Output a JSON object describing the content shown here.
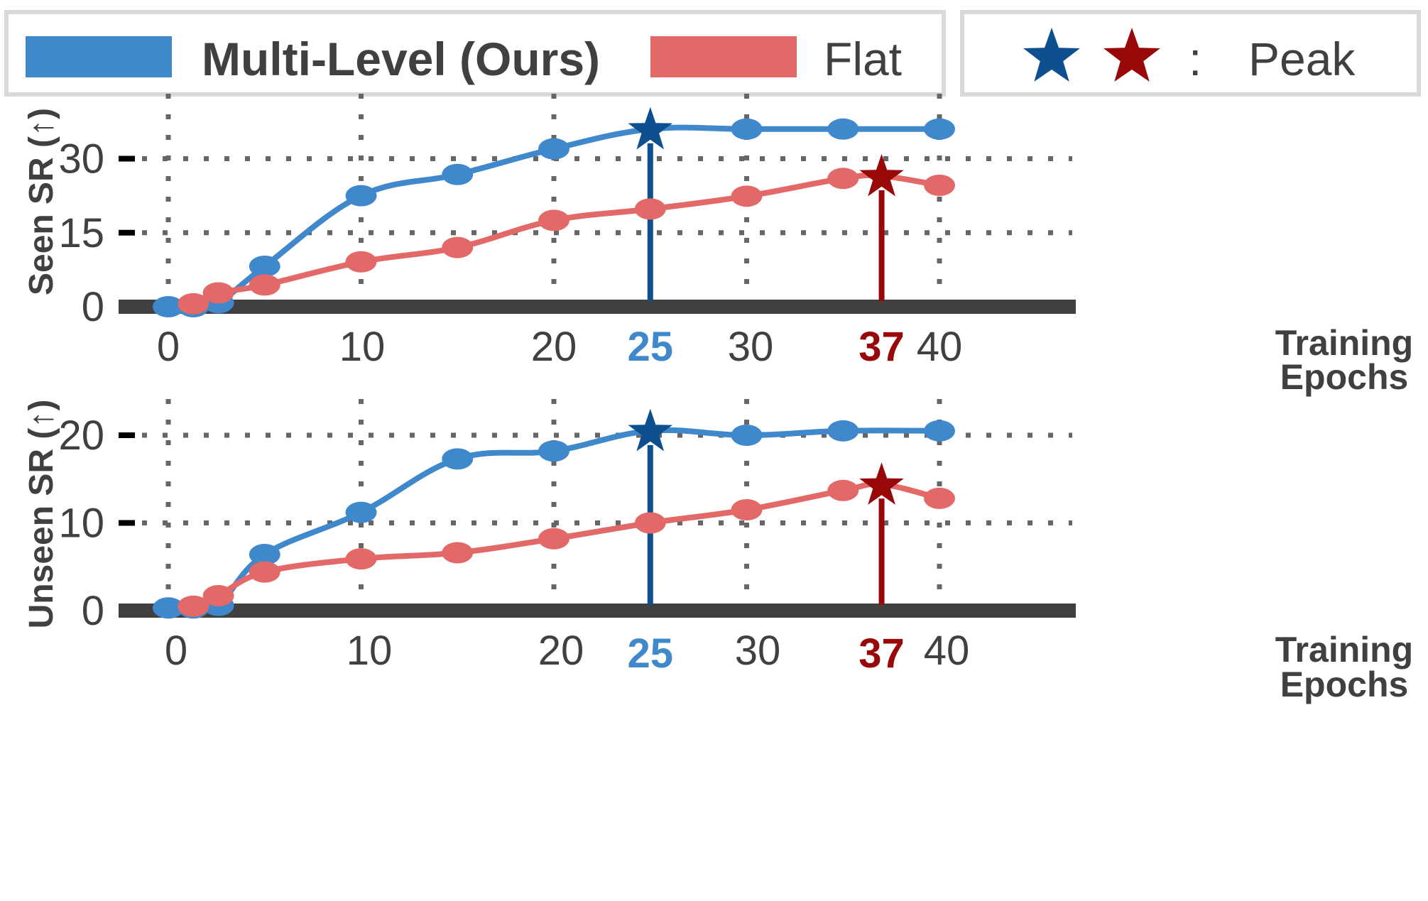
{
  "legend": {
    "multi_label": "Multi-Level (Ours)",
    "flat_label": "Flat",
    "peak_separator": ":",
    "peak_label": "Peak"
  },
  "colors": {
    "multi": "#4088cc",
    "flat": "#e36868",
    "multi_peak": "#0e4f8f",
    "flat_peak": "#980808",
    "axis": "#404040",
    "grid": "#666666"
  },
  "chart_data": [
    {
      "type": "line",
      "ylabel": "Seen SR (↑)",
      "xlabel": "Training Epochs",
      "x_ticks": [
        0,
        10,
        20,
        30,
        40
      ],
      "y_ticks": [
        0,
        15,
        30
      ],
      "ylim": [
        0,
        36
      ],
      "grid": true,
      "series": [
        {
          "name": "Multi-Level (Ours)",
          "x": [
            0,
            1.3,
            2.6,
            5,
            10,
            15,
            20,
            25,
            30,
            35,
            40
          ],
          "values": [
            0,
            0,
            0.8,
            8.2,
            22.5,
            26.8,
            32,
            36,
            36,
            36,
            36
          ]
        },
        {
          "name": "Flat",
          "x": [
            1.3,
            2.6,
            5,
            10,
            15,
            20,
            25,
            30,
            35,
            37,
            40
          ],
          "values": [
            0.6,
            2.8,
            4.4,
            9.1,
            12,
            17.5,
            19.8,
            22.4,
            26,
            26.5,
            24.6
          ]
        }
      ],
      "peaks": [
        {
          "series": "Multi-Level (Ours)",
          "epoch": 25,
          "label": "25"
        },
        {
          "series": "Flat",
          "epoch": 37,
          "label": "37"
        }
      ]
    },
    {
      "type": "line",
      "ylabel": "Unseen SR (↑)",
      "xlabel": "Training Epochs",
      "x_ticks": [
        0,
        10,
        20,
        30,
        40
      ],
      "y_ticks": [
        0,
        10,
        20
      ],
      "ylim": [
        0,
        20.5
      ],
      "grid": true,
      "series": [
        {
          "name": "Multi-Level (Ours)",
          "x": [
            0,
            1.3,
            2.6,
            5,
            10,
            15,
            20,
            25,
            30,
            35,
            40
          ],
          "values": [
            0.3,
            0.3,
            0.6,
            6.4,
            11.2,
            17.3,
            18.2,
            20.5,
            20,
            20.5,
            20.5
          ]
        },
        {
          "name": "Flat",
          "x": [
            1.3,
            2.6,
            5,
            10,
            15,
            20,
            25,
            30,
            35,
            37,
            40
          ],
          "values": [
            0.5,
            1.7,
            4.4,
            5.9,
            6.6,
            8.2,
            10,
            11.5,
            13.7,
            14.4,
            12.8
          ]
        }
      ],
      "peaks": [
        {
          "series": "Multi-Level (Ours)",
          "epoch": 25,
          "label": "25"
        },
        {
          "series": "Flat",
          "epoch": 37,
          "label": "37"
        }
      ]
    }
  ]
}
